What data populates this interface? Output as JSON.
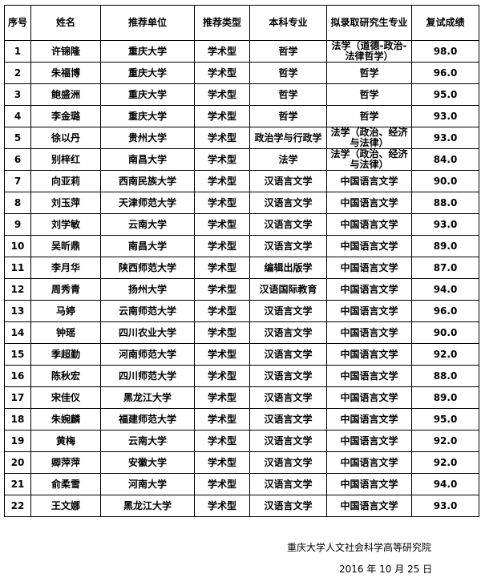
{
  "headers": [
    "序号",
    "姓名",
    "推荐单位",
    "推荐类型",
    "本科专业",
    "拟录取研究生专业",
    "复试成绩"
  ],
  "rows": [
    [
      "1",
      "许锦隆",
      "重庆大学",
      "学术型",
      "哲学",
      "法学（道德-政治-法律哲学）",
      "98.0"
    ],
    [
      "2",
      "朱福博",
      "重庆大学",
      "学术型",
      "哲学",
      "哲学",
      "96.0"
    ],
    [
      "3",
      "鲍盛洲",
      "重庆大学",
      "学术型",
      "哲学",
      "哲学",
      "95.0"
    ],
    [
      "4",
      "李金璐",
      "重庆大学",
      "学术型",
      "哲学",
      "哲学",
      "93.0"
    ],
    [
      "5",
      "徐以丹",
      "贵州大学",
      "学术型",
      "政治学与行政学",
      "法学（政治、经济与法律）",
      "93.0"
    ],
    [
      "6",
      "别梓红",
      "南昌大学",
      "学术型",
      "法学",
      "法学（政治、经济与法律）",
      "84.0"
    ],
    [
      "7",
      "向亚莉",
      "西南民族大学",
      "学术型",
      "汉语言文学",
      "中国语言文学",
      "90.0"
    ],
    [
      "8",
      "刘玉萍",
      "天津师范大学",
      "学术型",
      "汉语言文学",
      "中国语言文学",
      "88.0"
    ],
    [
      "9",
      "刘学敏",
      "云南大学",
      "学术型",
      "汉语言文学",
      "中国语言文学",
      "93.0"
    ],
    [
      "10",
      "吴昕鼎",
      "南昌大学",
      "学术型",
      "汉语言文学",
      "中国语言文学",
      "89.0"
    ],
    [
      "11",
      "李月华",
      "陕西师范大学",
      "学术型",
      "编辑出版学",
      "中国语言文学",
      "87.0"
    ],
    [
      "12",
      "周秀青",
      "扬州大学",
      "学术型",
      "汉语国际教育",
      "中国语言文学",
      "94.0"
    ],
    [
      "13",
      "马婷",
      "云南师范大学",
      "学术型",
      "汉语言文学",
      "中国语言文学",
      "96.0"
    ],
    [
      "14",
      "钟瑶",
      "四川农业大学",
      "学术型",
      "汉语言文学",
      "中国语言文学",
      "90.0"
    ],
    [
      "15",
      "季超勤",
      "河南师范大学",
      "学术型",
      "汉语言文学",
      "中国语言文学",
      "92.0"
    ],
    [
      "16",
      "陈秋宏",
      "四川师范大学",
      "学术型",
      "汉语言文学",
      "中国语言文学",
      "88.0"
    ],
    [
      "17",
      "宋佳仪",
      "黑龙江大学",
      "学术型",
      "汉语言文学",
      "中国语言文学",
      "89.0"
    ],
    [
      "18",
      "朱婉麟",
      "福建师范大学",
      "学术型",
      "汉语言文学",
      "中国语言文学",
      "95.0"
    ],
    [
      "19",
      "黄梅",
      "云南大学",
      "学术型",
      "汉语言文学",
      "中国语言文学",
      "92.0"
    ],
    [
      "20",
      "卿萍萍",
      "安徽大学",
      "学术型",
      "汉语言文学",
      "中国语言文学",
      "92.0"
    ],
    [
      "21",
      "俞柔雪",
      "河南大学",
      "学术型",
      "汉语言文学",
      "中国语言文学",
      "94.0"
    ],
    [
      "22",
      "王文娜",
      "黑龙江大学",
      "学术型",
      "汉语言文学",
      "中国语言文学",
      "93.0"
    ]
  ],
  "footer": {
    "org": "重庆大学人文社会科学高等研究院",
    "date": "2016 年 10 月 25 日"
  }
}
